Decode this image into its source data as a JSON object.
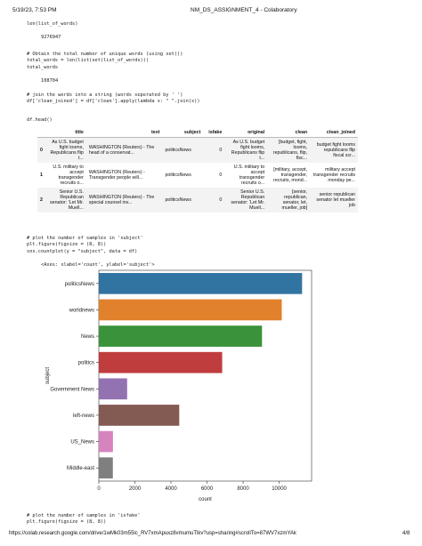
{
  "header": {
    "date": "5/19/23, 7:53 PM",
    "title": "NM_DS_ASSIGNMENT_4 - Colaboratory"
  },
  "cells": [
    {
      "code": [
        "len(list_of_words)"
      ],
      "output": 9276947
    },
    {
      "code": [
        "# Obtain the total number of unique words (using set())",
        "total_words = len(list(set(list_of_words)))",
        "total_words"
      ],
      "output": 108704
    },
    {
      "code": [
        "# join the words into a string (words seperated by ' ')",
        "df['clean_joined'] = df['clean'].apply(lambda x: \" \".join(x))"
      ]
    },
    {
      "code": [
        "df.head()"
      ]
    },
    {
      "code": [
        "# plot the number of samples in 'subject'",
        "plt.figure(figsize = (8, 8))",
        "sns.countplot(y = \"subject\", data = df)"
      ],
      "output": "<Axes: xlabel='count', ylabel='subject'>"
    },
    {
      "code": [
        "# plot the number of samples in 'isfake'",
        "plt.figure(figsize = (8, 8))"
      ]
    }
  ],
  "table": {
    "columns": [
      "title",
      "text",
      "subject",
      "isfake",
      "original",
      "clean",
      "clean_joined"
    ],
    "rows": [
      {
        "index": 0,
        "cells": [
          "As U.S. budget fight looms, Republicans flip t...",
          "WASHINGTON (Reuters) - The head of a conservat...",
          "politicsNews",
          0,
          "As U.S. budget fight looms, Republicans flip t...",
          "[budget, fight, looms, republicans, flip, fisc...",
          "budget fight looms republicans flip fiscal scr..."
        ]
      },
      {
        "index": 1,
        "cells": [
          "U.S. military to accept transgender recruits o...",
          "WASHINGTON (Reuters) - Transgender people will...",
          "politicsNews",
          0,
          "U.S. military to accept transgender recruits o...",
          "[military, accept, transgender, recruits, mond...",
          "military accept transgender recruits monday pe..."
        ]
      },
      {
        "index": 2,
        "cells": [
          "Senior U.S. Republican senator: 'Let Mr. Muell...",
          "WASHINGTON (Reuters) - The special counsel inv...",
          "politicsNews",
          0,
          "Senior U.S. Republican senator: 'Let Mr. Muell...",
          "[senior, republican, senator, let, mueller, job]",
          "senior republican senator let mueller job"
        ]
      }
    ]
  },
  "chart_data": {
    "type": "bar",
    "orientation": "horizontal",
    "xlabel": "count",
    "ylabel": "subject",
    "categories": [
      "politicsNews",
      "worldnews",
      "News",
      "politics",
      "Government News",
      "left-news",
      "US_News",
      "Middle-east"
    ],
    "values": [
      11272,
      10145,
      9050,
      6841,
      1570,
      4459,
      783,
      778
    ],
    "colors": [
      "#3274a1",
      "#e1812c",
      "#3a923a",
      "#c03d3e",
      "#9372b2",
      "#845b53",
      "#d684bd",
      "#7f7f7f"
    ],
    "xlim": [
      0,
      11800
    ],
    "xticks": [
      0,
      2000,
      4000,
      6000,
      8000,
      10000
    ]
  },
  "footer": {
    "url": "https://colab.research.google.com/drive/1wMk03m55lc_RV7xmApuxz8vmumuTlkv?usp=sharing#scrollTo=87WV7xzmYAk",
    "page": "4/8"
  }
}
